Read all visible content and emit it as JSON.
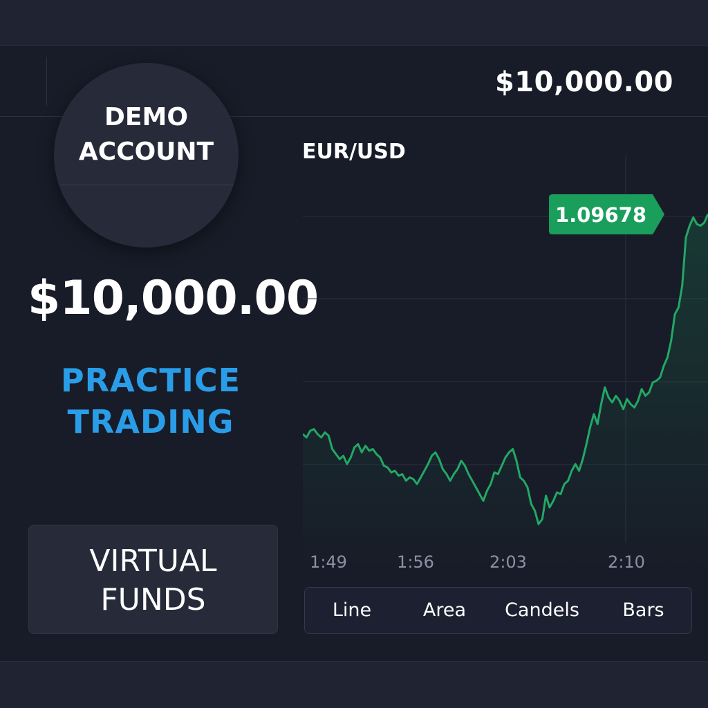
{
  "header": {
    "balance": "$10,000.00"
  },
  "demo_badge": {
    "line1": "DEMO",
    "line2": "ACCOUNT"
  },
  "account": {
    "balance": "$10,000.00",
    "practice_line1": "PRACTICE",
    "practice_line2": "TRADING"
  },
  "virtual_funds": {
    "line1": "VIRTUAL",
    "line2": "FUNDS"
  },
  "pair": "EUR/USD",
  "chart_types": [
    "Line",
    "Area",
    "Candels",
    "Bars"
  ],
  "colors": {
    "accent_blue": "#2a9de8",
    "price_green": "#1a9e5c",
    "line_green": "#22a866",
    "background": "#181c28",
    "panel": "#262a39"
  },
  "chart_data": {
    "type": "area",
    "title": "EUR/USD",
    "x_ticks": [
      "1:49",
      "1:56",
      "2:03",
      "2:10"
    ],
    "current_price": "1.09678",
    "grid": true,
    "series": [
      {
        "values": [
          0.54,
          0.52,
          0.56,
          0.57,
          0.54,
          0.52,
          0.55,
          0.53,
          0.45,
          0.42,
          0.39,
          0.41,
          0.36,
          0.4,
          0.46,
          0.48,
          0.43,
          0.47,
          0.44,
          0.45,
          0.42,
          0.4,
          0.35,
          0.34,
          0.31,
          0.32,
          0.29,
          0.3,
          0.26,
          0.28,
          0.27,
          0.24,
          0.28,
          0.32,
          0.36,
          0.41,
          0.43,
          0.39,
          0.33,
          0.3,
          0.26,
          0.3,
          0.33,
          0.38,
          0.35,
          0.3,
          0.26,
          0.22,
          0.18,
          0.14,
          0.2,
          0.24,
          0.31,
          0.3,
          0.35,
          0.4,
          0.43,
          0.45,
          0.38,
          0.28,
          0.26,
          0.22,
          0.12,
          0.08,
          0.0,
          0.03,
          0.17,
          0.1,
          0.14,
          0.19,
          0.18,
          0.24,
          0.26,
          0.32,
          0.36,
          0.32,
          0.39,
          0.48,
          0.58,
          0.66,
          0.6,
          0.72,
          0.82,
          0.76,
          0.73,
          0.77,
          0.74,
          0.69,
          0.75,
          0.72,
          0.7,
          0.74,
          0.81,
          0.77,
          0.79,
          0.85,
          0.86,
          0.88,
          0.95,
          1.0,
          1.1,
          1.26,
          1.3,
          1.43,
          1.72,
          1.79,
          1.84,
          1.8,
          1.79,
          1.81,
          1.86
        ]
      }
    ]
  }
}
